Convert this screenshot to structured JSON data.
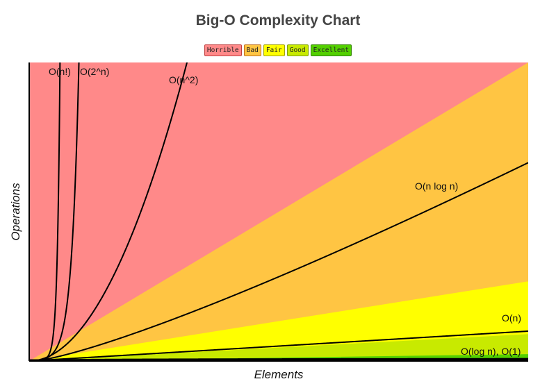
{
  "chart_data": {
    "type": "line",
    "title": "Big-O Complexity Chart",
    "xlabel": "Elements",
    "ylabel": "Operations",
    "xlim": [
      0,
      100
    ],
    "ylim": [
      0,
      1000
    ],
    "grid": false,
    "legend_placement": "top",
    "legend": [
      {
        "label": "Horrible",
        "color": "#ff8989",
        "border": "#c04040"
      },
      {
        "label": "Bad",
        "color": "#ffc543",
        "border": "#c07020"
      },
      {
        "label": "Fair",
        "color": "#ffff00",
        "border": "#a0a000"
      },
      {
        "label": "Good",
        "color": "#c8ea00",
        "border": "#80a000"
      },
      {
        "label": "Excellent",
        "color": "#53d000",
        "border": "#308000"
      }
    ],
    "regions": [
      {
        "name": "Horrible",
        "upper_at_xmax": 1000,
        "full": true,
        "color": "#ff8989"
      },
      {
        "name": "Bad",
        "upper_at_xmax": 1000,
        "color": "#ffc543"
      },
      {
        "name": "Fair",
        "upper_at_xmax": 267,
        "color": "#ffff00"
      },
      {
        "name": "Good",
        "upper_at_xmax": 90,
        "color": "#c8ea00"
      },
      {
        "name": "Excellent",
        "upper_at_xmax": 23,
        "color": "#53d000"
      }
    ],
    "series": [
      {
        "name": "O(n!)",
        "func": "factorial"
      },
      {
        "name": "O(2^n)",
        "func": "exp2"
      },
      {
        "name": "O(n^2)",
        "func": "square"
      },
      {
        "name": "O(n log n)",
        "func": "nlogn"
      },
      {
        "name": "O(n)",
        "func": "linear"
      },
      {
        "name": "O(log n), O(1)",
        "func": "log"
      }
    ]
  }
}
